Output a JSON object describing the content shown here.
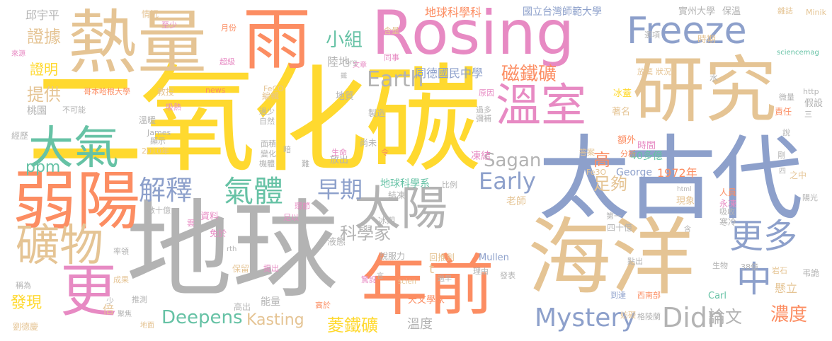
{
  "colors": {
    "gray": "#b3b3b3",
    "orange": "#fc8d62",
    "blue": "#8da0cb",
    "pink": "#e78ac3",
    "green": "#a6d854",
    "yellow": "#ffd92f",
    "tan": "#e5c494",
    "teal": "#66c2a5"
  },
  "words": {
    "w1": "地球",
    "w2": "二氧化碳",
    "w3": "Rosing",
    "w4": "太古代",
    "w5": "海洋",
    "w6": "研究",
    "w7": "熱量",
    "w8": "雨",
    "w9": "年前",
    "w10": "弱陽",
    "w11": "大氣",
    "w12": "溫室",
    "w13": "Freeze",
    "w14": "太陽",
    "w15": "礦物",
    "w16": "更",
    "w17": "更多",
    "w18": "中",
    "w19": "氣體",
    "w20": "解釋",
    "w21": "Didn",
    "w22": "Mystery",
    "w23": "Earth",
    "w24": "Early",
    "w25": "早期",
    "w26": "磁鐵礦",
    "w27": "Deepens",
    "w28": "濃度",
    "w29": "Sagan",
    "w30": "小組",
    "w31": "證據",
    "w32": "提供",
    "w33": "足夠",
    "w34": "高",
    "w35": "科學家",
    "w36": "菱鐵礦",
    "w37": "論文",
    "w38": "Kasting",
    "w39": "ppm",
    "w40": "發現",
    "w41": "地球科學系",
    "w42": "地球科學科",
    "w43": "國立台灣師範大學",
    "w44": "同德國民中學",
    "w45": "實州大學",
    "w46": "保溫",
    "w47": "雜誌",
    "w48": "Minik",
    "w49": "邱宇平",
    "w50": "情況",
    "w51": "至少",
    "w52": "月份",
    "w53": "證明",
    "w54": "陸地",
    "w55": "時期",
    "w56": "溫度",
    "w57": "1972年",
    "w58": "George",
    "w59": "40多億",
    "w60": "時間",
    "w61": "額外",
    "w62": "凍結",
    "w63": "Fe3O",
    "w64": "四十億",
    "w65": "寒冷",
    "w66": "永凍",
    "w67": "懸立",
    "w68": "t",
    "w69": "Mullen",
    "w70": "天文學家",
    "w71": "Carl",
    "w72": "38億",
    "w73": "岩石",
    "w74": "弔詭",
    "w75": "冰蓋",
    "w76": "著名",
    "w77": "責任",
    "w78": "假設",
    "w79": "老師",
    "w80": "人員",
    "w81": "現象",
    "w82": "答案",
    "w83": "倍",
    "w84": "能量",
    "w85": "高出",
    "w86": "桃園",
    "w87": "經歷",
    "w88": "溫暖",
    "w89": "編輯",
    "w90": "教授",
    "w91": "哥本哈根大學",
    "w92": "超級",
    "w93": "液態",
    "w94": "放出",
    "w95": "尚未",
    "w96": "結凍",
    "w97": "資料",
    "w98": "冰期",
    "w99": "免於",
    "w100": "保留",
    "w101": "說服力",
    "w102": "回推到",
    "w103": "劉德慶",
    "w104": "稱為",
    "w105": "率領",
    "w106": "推測",
    "w107": "成果",
    "w108": "地面",
    "w109": "高於",
    "w110": "提出",
    "w111": "驚訝",
    "w112": "妨礙",
    "w113": "格陵蘭",
    "w114": "西南部",
    "w115": "到達",
    "w116": "生物",
    "w117": "點出",
    "w118": "發表",
    "w119": "理由",
    "w120": "第一",
    "w121": "吸收",
    "w122": "陽光",
    "w123": "之中",
    "w124": "分析",
    "w125": "剛",
    "w126": "說",
    "w127": "三",
    "w128": "http",
    "w129": "微量",
    "w130": "sciencemag",
    "w131": "狀況",
    "w132": "放棄",
    "w133": "選項",
    "w134": "原因",
    "w135": "過多",
    "w136": "彌補",
    "w137": "製造",
    "w138": "地質",
    "w139": "同事",
    "w140": "文章",
    "w141": "含量",
    "w142": "org",
    "w143": "news",
    "w144": "FeCO",
    "w145": "吸熱",
    "w146": "不可能",
    "w147": "過少",
    "w148": "自然",
    "w149": "James",
    "w150": "顯示",
    "w151": "2010年",
    "w152": "面積",
    "w153": "變化",
    "w154": "機體",
    "w155": "暗",
    "w156": "難",
    "w157": "生命",
    "w158": "令",
    "w159": "環節",
    "w160": "足以",
    "w161": "數十億",
    "w162": "雲",
    "w163": "rth",
    "w164": "比例",
    "w165": "言",
    "w166": "scien",
    "w167": "過早",
    "w168": "少",
    "w169": "聚焦",
    "w170": "來源",
    "w171": "鐵",
    "w172": "水",
    "w173": "html",
    "w174": "四",
    "w175": "含"
  }
}
